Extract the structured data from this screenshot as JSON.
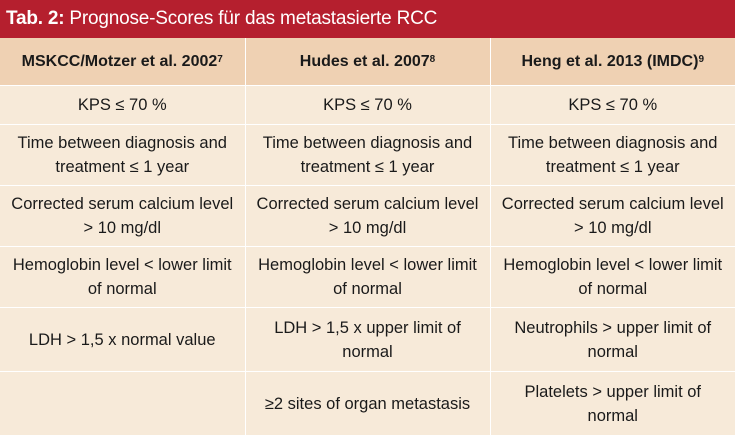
{
  "title": {
    "label": "Tab. 2:",
    "text": "Prognose-Scores für das metastasierte RCC"
  },
  "columns": [
    {
      "name": "MSKCC/Motzer et al. 2002",
      "ref": "7"
    },
    {
      "name": "Hudes et al. 2007",
      "ref": "8"
    },
    {
      "name": "Heng et al. 2013 (IMDC)",
      "ref": "9"
    }
  ],
  "rows": [
    [
      "KPS ≤ 70 %",
      "KPS ≤ 70 %",
      "KPS ≤ 70 %"
    ],
    [
      "Time between diagnosis and treatment ≤ 1 year",
      "Time between diagnosis and treatment ≤ 1 year",
      "Time between diagnosis and treatment ≤ 1 year"
    ],
    [
      "Corrected serum calcium level > 10 mg/dl",
      "Corrected serum calcium level > 10 mg/dl",
      "Corrected serum calcium level > 10 mg/dl"
    ],
    [
      "Hemoglobin level < lower limit of normal",
      "Hemoglobin level < lower limit of normal",
      "Hemoglobin level < lower limit of normal"
    ],
    [
      "LDH > 1,5 x normal value",
      "LDH > 1,5 x upper limit of normal",
      "Neutrophils > upper limit of normal"
    ],
    [
      "",
      "≥2 sites of organ metastasis",
      "Platelets > upper limit of normal"
    ]
  ]
}
